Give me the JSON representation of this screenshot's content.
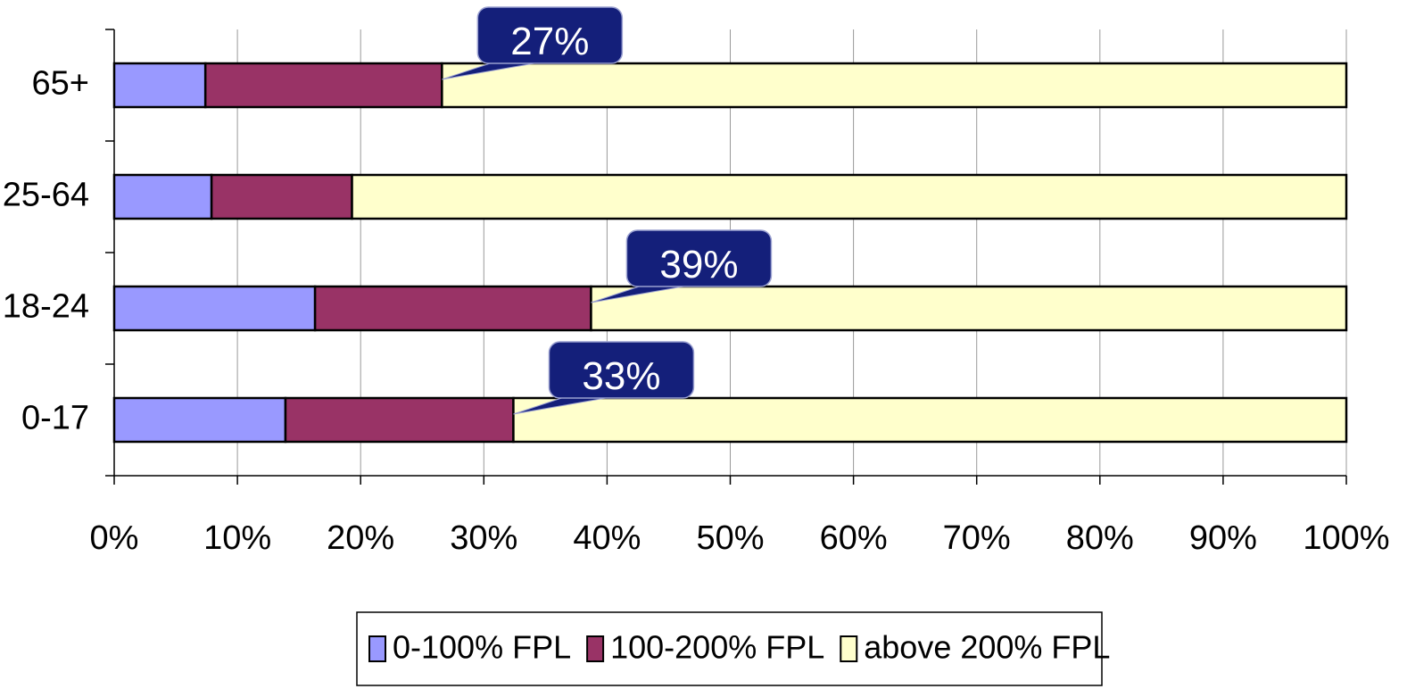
{
  "chart_data": {
    "type": "stacked_barh",
    "categories": [
      "0-17",
      "18-24",
      "25-64",
      "65+"
    ],
    "series": [
      {
        "name": "0-100% FPL",
        "color": "#9999ff",
        "values": [
          13.9,
          16.3,
          7.9,
          7.4
        ]
      },
      {
        "name": "100-200% FPL",
        "color": "#993366",
        "values": [
          18.5,
          22.4,
          11.4,
          19.2
        ]
      },
      {
        "name": "above 200% FPL",
        "color": "#ffffcc",
        "values": [
          67.6,
          61.3,
          80.7,
          73.4
        ]
      }
    ],
    "xlim": [
      0,
      100
    ],
    "xticks": [
      {
        "value": 0,
        "label": "0%"
      },
      {
        "value": 10,
        "label": "10%"
      },
      {
        "value": 20,
        "label": "20%"
      },
      {
        "value": 30,
        "label": "30%"
      },
      {
        "value": 40,
        "label": "40%"
      },
      {
        "value": 50,
        "label": "50%"
      },
      {
        "value": 60,
        "label": "60%"
      },
      {
        "value": 70,
        "label": "70%"
      },
      {
        "value": 80,
        "label": "80%"
      },
      {
        "value": 90,
        "label": "90%"
      },
      {
        "value": 100,
        "label": "100%"
      }
    ],
    "grid": true,
    "legend": "bottom",
    "annotations": [
      {
        "text": "27%",
        "category": "65+"
      },
      {
        "text": "39%",
        "category": "18-24"
      },
      {
        "text": "33%",
        "category": "0-17"
      }
    ],
    "annotation_color": "#141f7a"
  }
}
